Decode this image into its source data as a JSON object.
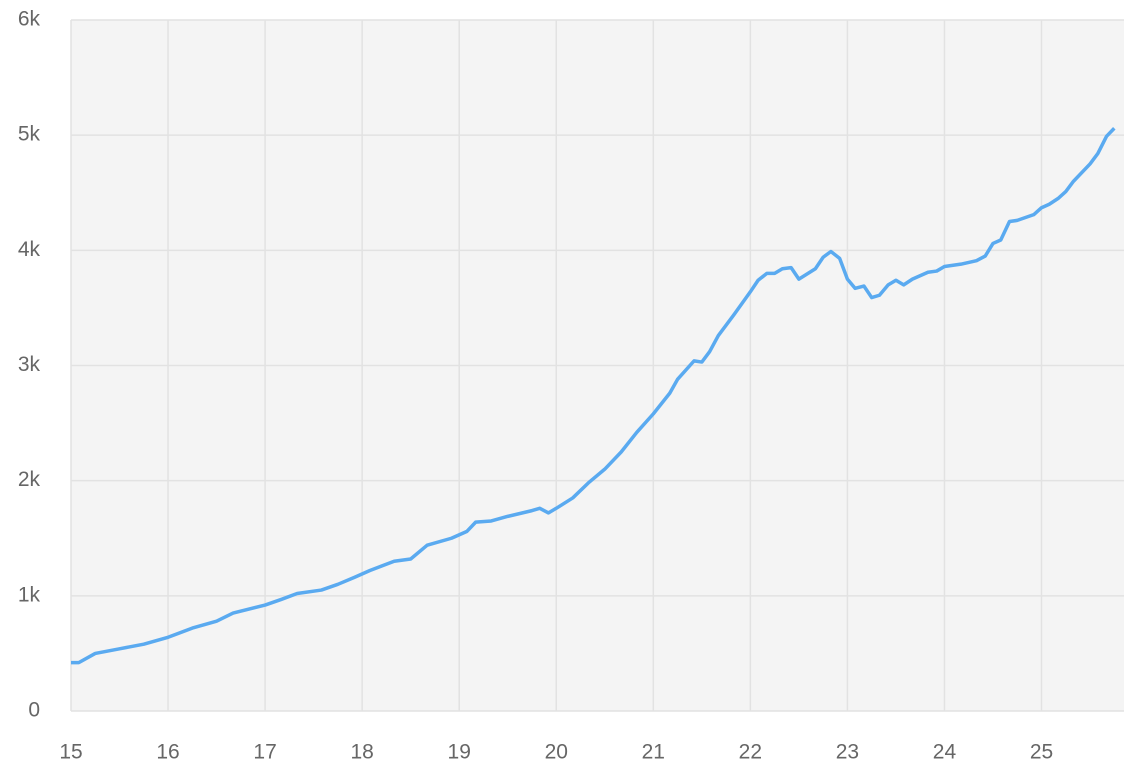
{
  "chart_data": {
    "type": "line",
    "x": [
      15.0,
      15.08,
      15.25,
      15.5,
      15.75,
      16.0,
      16.25,
      16.5,
      16.67,
      17.0,
      17.17,
      17.33,
      17.58,
      17.75,
      17.92,
      18.08,
      18.33,
      18.5,
      18.67,
      18.92,
      19.08,
      19.17,
      19.33,
      19.5,
      19.75,
      19.83,
      19.92,
      20.0,
      20.17,
      20.33,
      20.5,
      20.67,
      20.83,
      21.0,
      21.17,
      21.25,
      21.42,
      21.5,
      21.58,
      21.67,
      21.83,
      22.0,
      22.08,
      22.17,
      22.25,
      22.33,
      22.42,
      22.5,
      22.67,
      22.75,
      22.83,
      22.92,
      23.0,
      23.08,
      23.17,
      23.25,
      23.33,
      23.42,
      23.5,
      23.58,
      23.67,
      23.83,
      23.92,
      24.0,
      24.17,
      24.33,
      24.42,
      24.5,
      24.58,
      24.67,
      24.75,
      24.92,
      25.0,
      25.08,
      25.17,
      25.25,
      25.33,
      25.5,
      25.58,
      25.67,
      25.75
    ],
    "series": [
      {
        "color": "#5aaaf0",
        "values": [
          420,
          420,
          500,
          540,
          580,
          640,
          720,
          780,
          850,
          920,
          970,
          1020,
          1050,
          1100,
          1160,
          1220,
          1300,
          1320,
          1440,
          1500,
          1560,
          1640,
          1650,
          1690,
          1740,
          1760,
          1720,
          1760,
          1850,
          1980,
          2100,
          2250,
          2420,
          2580,
          2760,
          2880,
          3040,
          3030,
          3120,
          3260,
          3440,
          3640,
          3740,
          3800,
          3800,
          3840,
          3850,
          3750,
          3840,
          3940,
          3990,
          3930,
          3750,
          3670,
          3690,
          3590,
          3610,
          3700,
          3740,
          3700,
          3750,
          3810,
          3820,
          3860,
          3880,
          3910,
          3950,
          4060,
          4090,
          4250,
          4260,
          4310,
          4370,
          4400,
          4450,
          4510,
          4600,
          4750,
          4840,
          4990,
          5060
        ]
      }
    ],
    "xlim": [
      15,
      25.85
    ],
    "xticks": [
      15,
      16,
      17,
      18,
      19,
      20,
      21,
      22,
      23,
      24,
      25
    ],
    "ylim": [
      0,
      6000
    ],
    "yticks": [
      0,
      {
        "value": 1000,
        "label": "1k"
      },
      {
        "value": 2000,
        "label": "2k"
      },
      {
        "value": 3000,
        "label": "3k"
      },
      {
        "value": 4000,
        "label": "4k"
      },
      {
        "value": 5000,
        "label": "5k"
      },
      {
        "value": 6000,
        "label": "6k"
      }
    ],
    "grid": true
  }
}
